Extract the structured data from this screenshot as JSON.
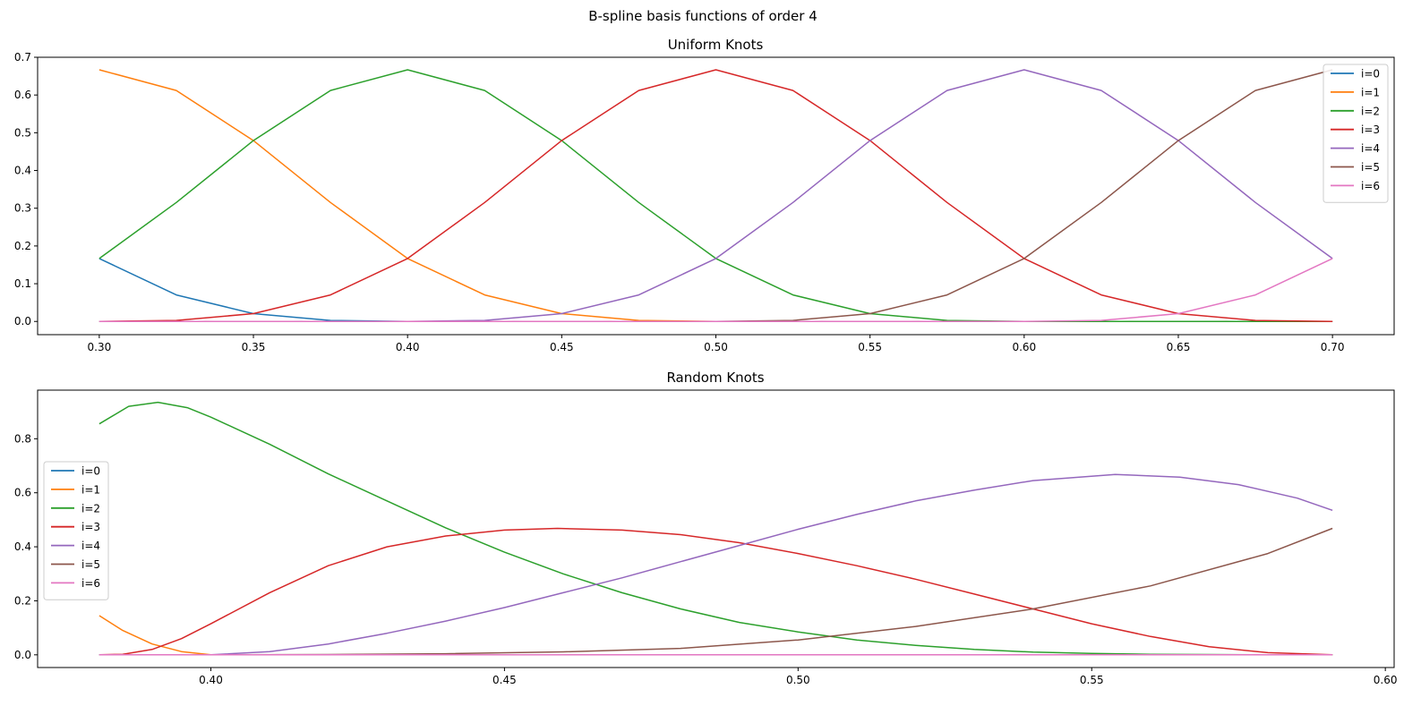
{
  "suptitle": "B-spline basis functions of order 4",
  "chart_data": [
    {
      "type": "line",
      "title": "Uniform Knots",
      "xlabel": "",
      "ylabel": "",
      "xlim": [
        0.28,
        0.72
      ],
      "ylim": [
        -0.035,
        0.7
      ],
      "xticks": [
        0.3,
        0.35,
        0.4,
        0.45,
        0.5,
        0.55,
        0.6,
        0.65,
        0.7
      ],
      "xtick_labels": [
        "0.30",
        "0.35",
        "0.40",
        "0.45",
        "0.50",
        "0.55",
        "0.60",
        "0.65",
        "0.70"
      ],
      "yticks": [
        0.0,
        0.1,
        0.2,
        0.3,
        0.4,
        0.5,
        0.6,
        0.7
      ],
      "ytick_labels": [
        "0.0",
        "0.1",
        "0.2",
        "0.3",
        "0.4",
        "0.5",
        "0.6",
        "0.7"
      ],
      "grid": false,
      "legend_position": "upper right",
      "series": [
        {
          "name": "i=0",
          "color": "#1f77b4",
          "x": [
            0.3,
            0.325,
            0.35,
            0.375,
            0.4,
            0.7
          ],
          "y": [
            0.1667,
            0.0703,
            0.0208,
            0.0026,
            0.0,
            0.0
          ]
        },
        {
          "name": "i=1",
          "color": "#ff7f0e",
          "x": [
            0.3,
            0.325,
            0.35,
            0.375,
            0.4,
            0.425,
            0.45,
            0.475,
            0.5,
            0.7
          ],
          "y": [
            0.6667,
            0.612,
            0.4792,
            0.3151,
            0.1667,
            0.0703,
            0.0208,
            0.0026,
            0.0,
            0.0
          ]
        },
        {
          "name": "i=2",
          "color": "#2ca02c",
          "x": [
            0.3,
            0.325,
            0.35,
            0.375,
            0.4,
            0.425,
            0.45,
            0.475,
            0.5,
            0.525,
            0.55,
            0.575,
            0.6,
            0.7
          ],
          "y": [
            0.1667,
            0.3151,
            0.4792,
            0.612,
            0.6667,
            0.612,
            0.4792,
            0.3151,
            0.1667,
            0.0703,
            0.0208,
            0.0026,
            0.0,
            0.0
          ]
        },
        {
          "name": "i=3",
          "color": "#d62728",
          "x": [
            0.3,
            0.325,
            0.35,
            0.375,
            0.4,
            0.425,
            0.45,
            0.475,
            0.5,
            0.525,
            0.55,
            0.575,
            0.6,
            0.625,
            0.65,
            0.675,
            0.7
          ],
          "y": [
            0.0,
            0.0026,
            0.0208,
            0.0703,
            0.1667,
            0.3151,
            0.4792,
            0.612,
            0.6667,
            0.612,
            0.4792,
            0.3151,
            0.1667,
            0.0703,
            0.0208,
            0.0026,
            0.0
          ]
        },
        {
          "name": "i=4",
          "color": "#9467bd",
          "x": [
            0.3,
            0.4,
            0.425,
            0.45,
            0.475,
            0.5,
            0.525,
            0.55,
            0.575,
            0.6,
            0.625,
            0.65,
            0.675,
            0.7
          ],
          "y": [
            0.0,
            0.0,
            0.0026,
            0.0208,
            0.0703,
            0.1667,
            0.3151,
            0.4792,
            0.612,
            0.6667,
            0.612,
            0.4792,
            0.3151,
            0.1667
          ]
        },
        {
          "name": "i=5",
          "color": "#8c564b",
          "x": [
            0.3,
            0.5,
            0.525,
            0.55,
            0.575,
            0.6,
            0.625,
            0.65,
            0.675,
            0.7
          ],
          "y": [
            0.0,
            0.0,
            0.0026,
            0.0208,
            0.0703,
            0.1667,
            0.3151,
            0.4792,
            0.612,
            0.6667
          ]
        },
        {
          "name": "i=6",
          "color": "#e377c2",
          "x": [
            0.3,
            0.6,
            0.625,
            0.65,
            0.675,
            0.7
          ],
          "y": [
            0.0,
            0.0,
            0.0026,
            0.0208,
            0.0703,
            0.1667
          ]
        }
      ]
    },
    {
      "type": "line",
      "title": "Random Knots",
      "xlabel": "",
      "ylabel": "",
      "xlim": [
        0.3705,
        0.6015
      ],
      "ylim": [
        -0.047,
        0.98
      ],
      "xticks": [
        0.4,
        0.45,
        0.5,
        0.55,
        0.6
      ],
      "xtick_labels": [
        "0.40",
        "0.45",
        "0.50",
        "0.55",
        "0.60"
      ],
      "yticks": [
        0.0,
        0.2,
        0.4,
        0.6,
        0.8
      ],
      "ytick_labels": [
        "0.0",
        "0.2",
        "0.4",
        "0.6",
        "0.8"
      ],
      "grid": false,
      "legend_position": "center left",
      "series": [
        {
          "name": "i=0",
          "color": "#1f77b4",
          "x": [
            0.381,
            0.591
          ],
          "y": [
            0.0,
            0.0
          ]
        },
        {
          "name": "i=1",
          "color": "#ff7f0e",
          "x": [
            0.381,
            0.385,
            0.39,
            0.395,
            0.4,
            0.591
          ],
          "y": [
            0.145,
            0.09,
            0.04,
            0.012,
            0.0,
            0.0
          ]
        },
        {
          "name": "i=2",
          "color": "#2ca02c",
          "x": [
            0.381,
            0.386,
            0.391,
            0.396,
            0.4,
            0.41,
            0.42,
            0.43,
            0.44,
            0.45,
            0.46,
            0.47,
            0.48,
            0.49,
            0.5,
            0.51,
            0.52,
            0.53,
            0.54,
            0.55,
            0.56,
            0.57,
            0.58,
            0.591
          ],
          "y": [
            0.855,
            0.92,
            0.935,
            0.915,
            0.88,
            0.78,
            0.67,
            0.57,
            0.47,
            0.38,
            0.3,
            0.23,
            0.17,
            0.12,
            0.085,
            0.055,
            0.035,
            0.02,
            0.01,
            0.005,
            0.002,
            0.001,
            0.0,
            0.0
          ]
        },
        {
          "name": "i=3",
          "color": "#d62728",
          "x": [
            0.381,
            0.385,
            0.39,
            0.395,
            0.4,
            0.41,
            0.42,
            0.43,
            0.44,
            0.45,
            0.459,
            0.47,
            0.48,
            0.49,
            0.5,
            0.51,
            0.52,
            0.53,
            0.54,
            0.55,
            0.56,
            0.57,
            0.58,
            0.591
          ],
          "y": [
            0.0,
            0.002,
            0.02,
            0.06,
            0.115,
            0.23,
            0.33,
            0.4,
            0.44,
            0.462,
            0.468,
            0.462,
            0.445,
            0.415,
            0.375,
            0.33,
            0.28,
            0.225,
            0.17,
            0.115,
            0.068,
            0.03,
            0.008,
            0.0
          ]
        },
        {
          "name": "i=4",
          "color": "#9467bd",
          "x": [
            0.381,
            0.4,
            0.41,
            0.42,
            0.43,
            0.44,
            0.45,
            0.46,
            0.47,
            0.48,
            0.49,
            0.5,
            0.51,
            0.52,
            0.53,
            0.54,
            0.554,
            0.565,
            0.575,
            0.585,
            0.591
          ],
          "y": [
            0.0,
            0.0,
            0.012,
            0.04,
            0.08,
            0.125,
            0.175,
            0.23,
            0.285,
            0.345,
            0.405,
            0.465,
            0.52,
            0.57,
            0.61,
            0.645,
            0.668,
            0.658,
            0.63,
            0.58,
            0.535
          ]
        },
        {
          "name": "i=5",
          "color": "#8c564b",
          "x": [
            0.381,
            0.4,
            0.42,
            0.44,
            0.46,
            0.48,
            0.5,
            0.52,
            0.54,
            0.56,
            0.58,
            0.591
          ],
          "y": [
            0.0,
            0.0,
            0.001,
            0.004,
            0.011,
            0.024,
            0.055,
            0.105,
            0.17,
            0.255,
            0.375,
            0.468
          ]
        },
        {
          "name": "i=6",
          "color": "#e377c2",
          "x": [
            0.381,
            0.591
          ],
          "y": [
            0.0,
            0.0
          ]
        }
      ]
    }
  ]
}
